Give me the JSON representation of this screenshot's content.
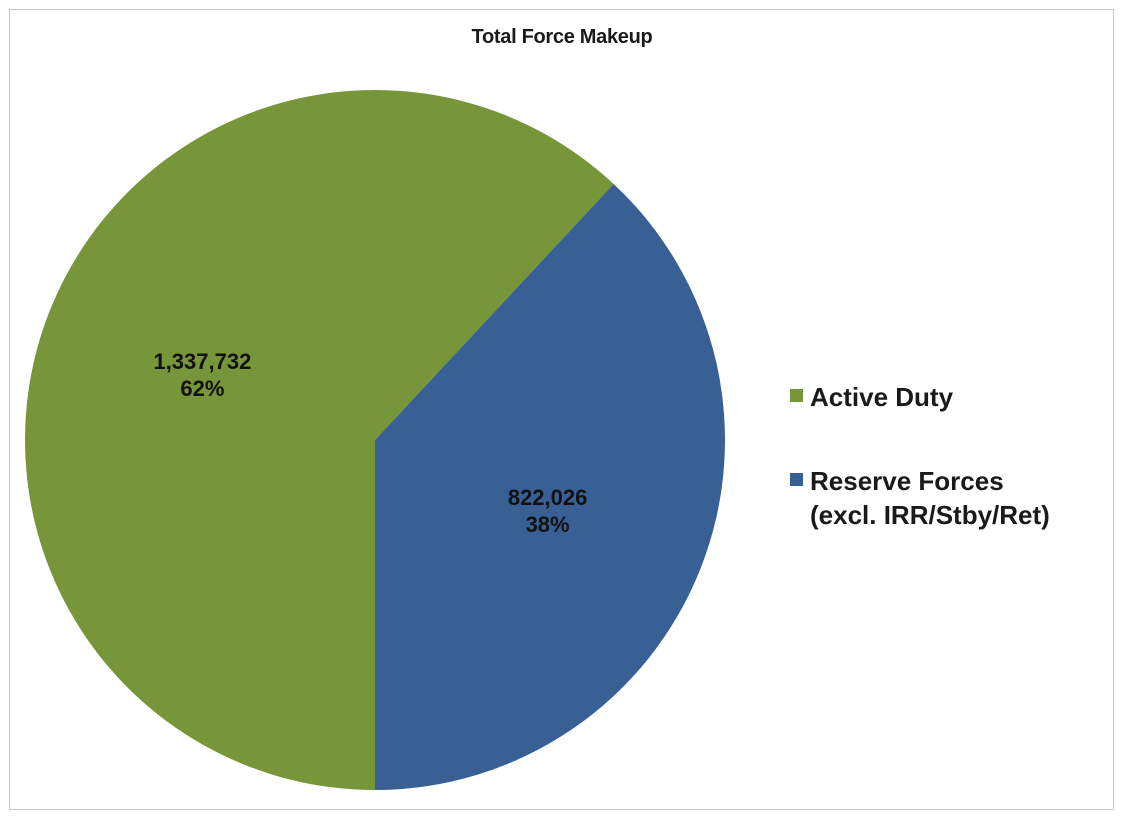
{
  "chart_data": {
    "type": "pie",
    "title": "Total Force Makeup",
    "slices": [
      {
        "name": "Active Duty",
        "legend_lines": [
          "Active Duty"
        ],
        "value": 1337732,
        "value_label": "1,337,732",
        "percent_label": "62%",
        "color": "#77963a"
      },
      {
        "name": "Reserve Forces (excl. IRR/Stby/Ret)",
        "legend_lines": [
          "Reserve Forces",
          "(excl. IRR/Stby/Ret)"
        ],
        "value": 822026,
        "value_label": "822,026",
        "percent_label": "38%",
        "color": "#386094"
      }
    ],
    "start_angle": "top, clockwise starting with Reserve Forces",
    "legend_position": "right"
  }
}
